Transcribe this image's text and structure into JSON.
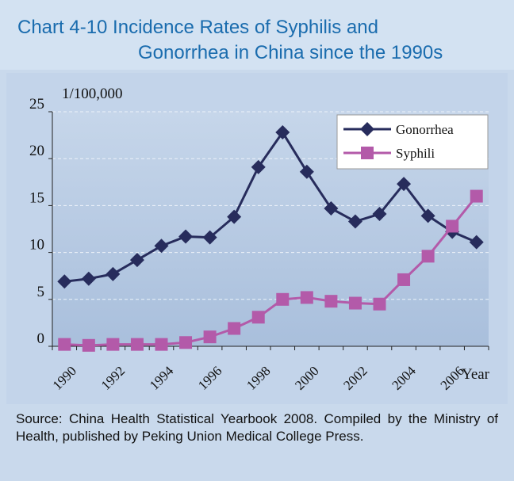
{
  "chart_data": {
    "type": "line",
    "title": [
      "Chart 4-10  Incidence Rates of Syphilis and",
      "Gonorrhea in China since the 1990s"
    ],
    "ylabel": "1/100,000",
    "xlabel": "Year",
    "categories": [
      "1990",
      null,
      "1992",
      null,
      "1994",
      null,
      "1996",
      null,
      "1998",
      null,
      "2000",
      null,
      "2002",
      null,
      "2004",
      null,
      "2006",
      null
    ],
    "series": [
      {
        "name": "Gonorrhea",
        "color": "#272c5c",
        "marker": "diamond",
        "values": [
          6.9,
          7.2,
          7.7,
          9.2,
          10.7,
          11.7,
          11.6,
          13.8,
          19.1,
          22.8,
          18.6,
          14.7,
          13.3,
          14.1,
          17.3,
          13.9,
          12.2,
          11.1
        ]
      },
      {
        "name": "Syphili",
        "color": "#b35aa9",
        "marker": "square",
        "values": [
          0.2,
          0.1,
          0.2,
          0.2,
          0.2,
          0.4,
          1.0,
          1.9,
          3.1,
          5.0,
          5.2,
          4.8,
          4.6,
          4.5,
          7.1,
          9.6,
          12.8,
          16.0
        ]
      }
    ],
    "ylim": [
      0,
      25
    ],
    "yticks": [
      0,
      5,
      10,
      15,
      20,
      25
    ],
    "grid": true,
    "legend": "upper right",
    "source": "Source: China Health Statistical Yearbook 2008. Compiled by the Ministry of Health, published by Peking Union Medical College Press."
  }
}
